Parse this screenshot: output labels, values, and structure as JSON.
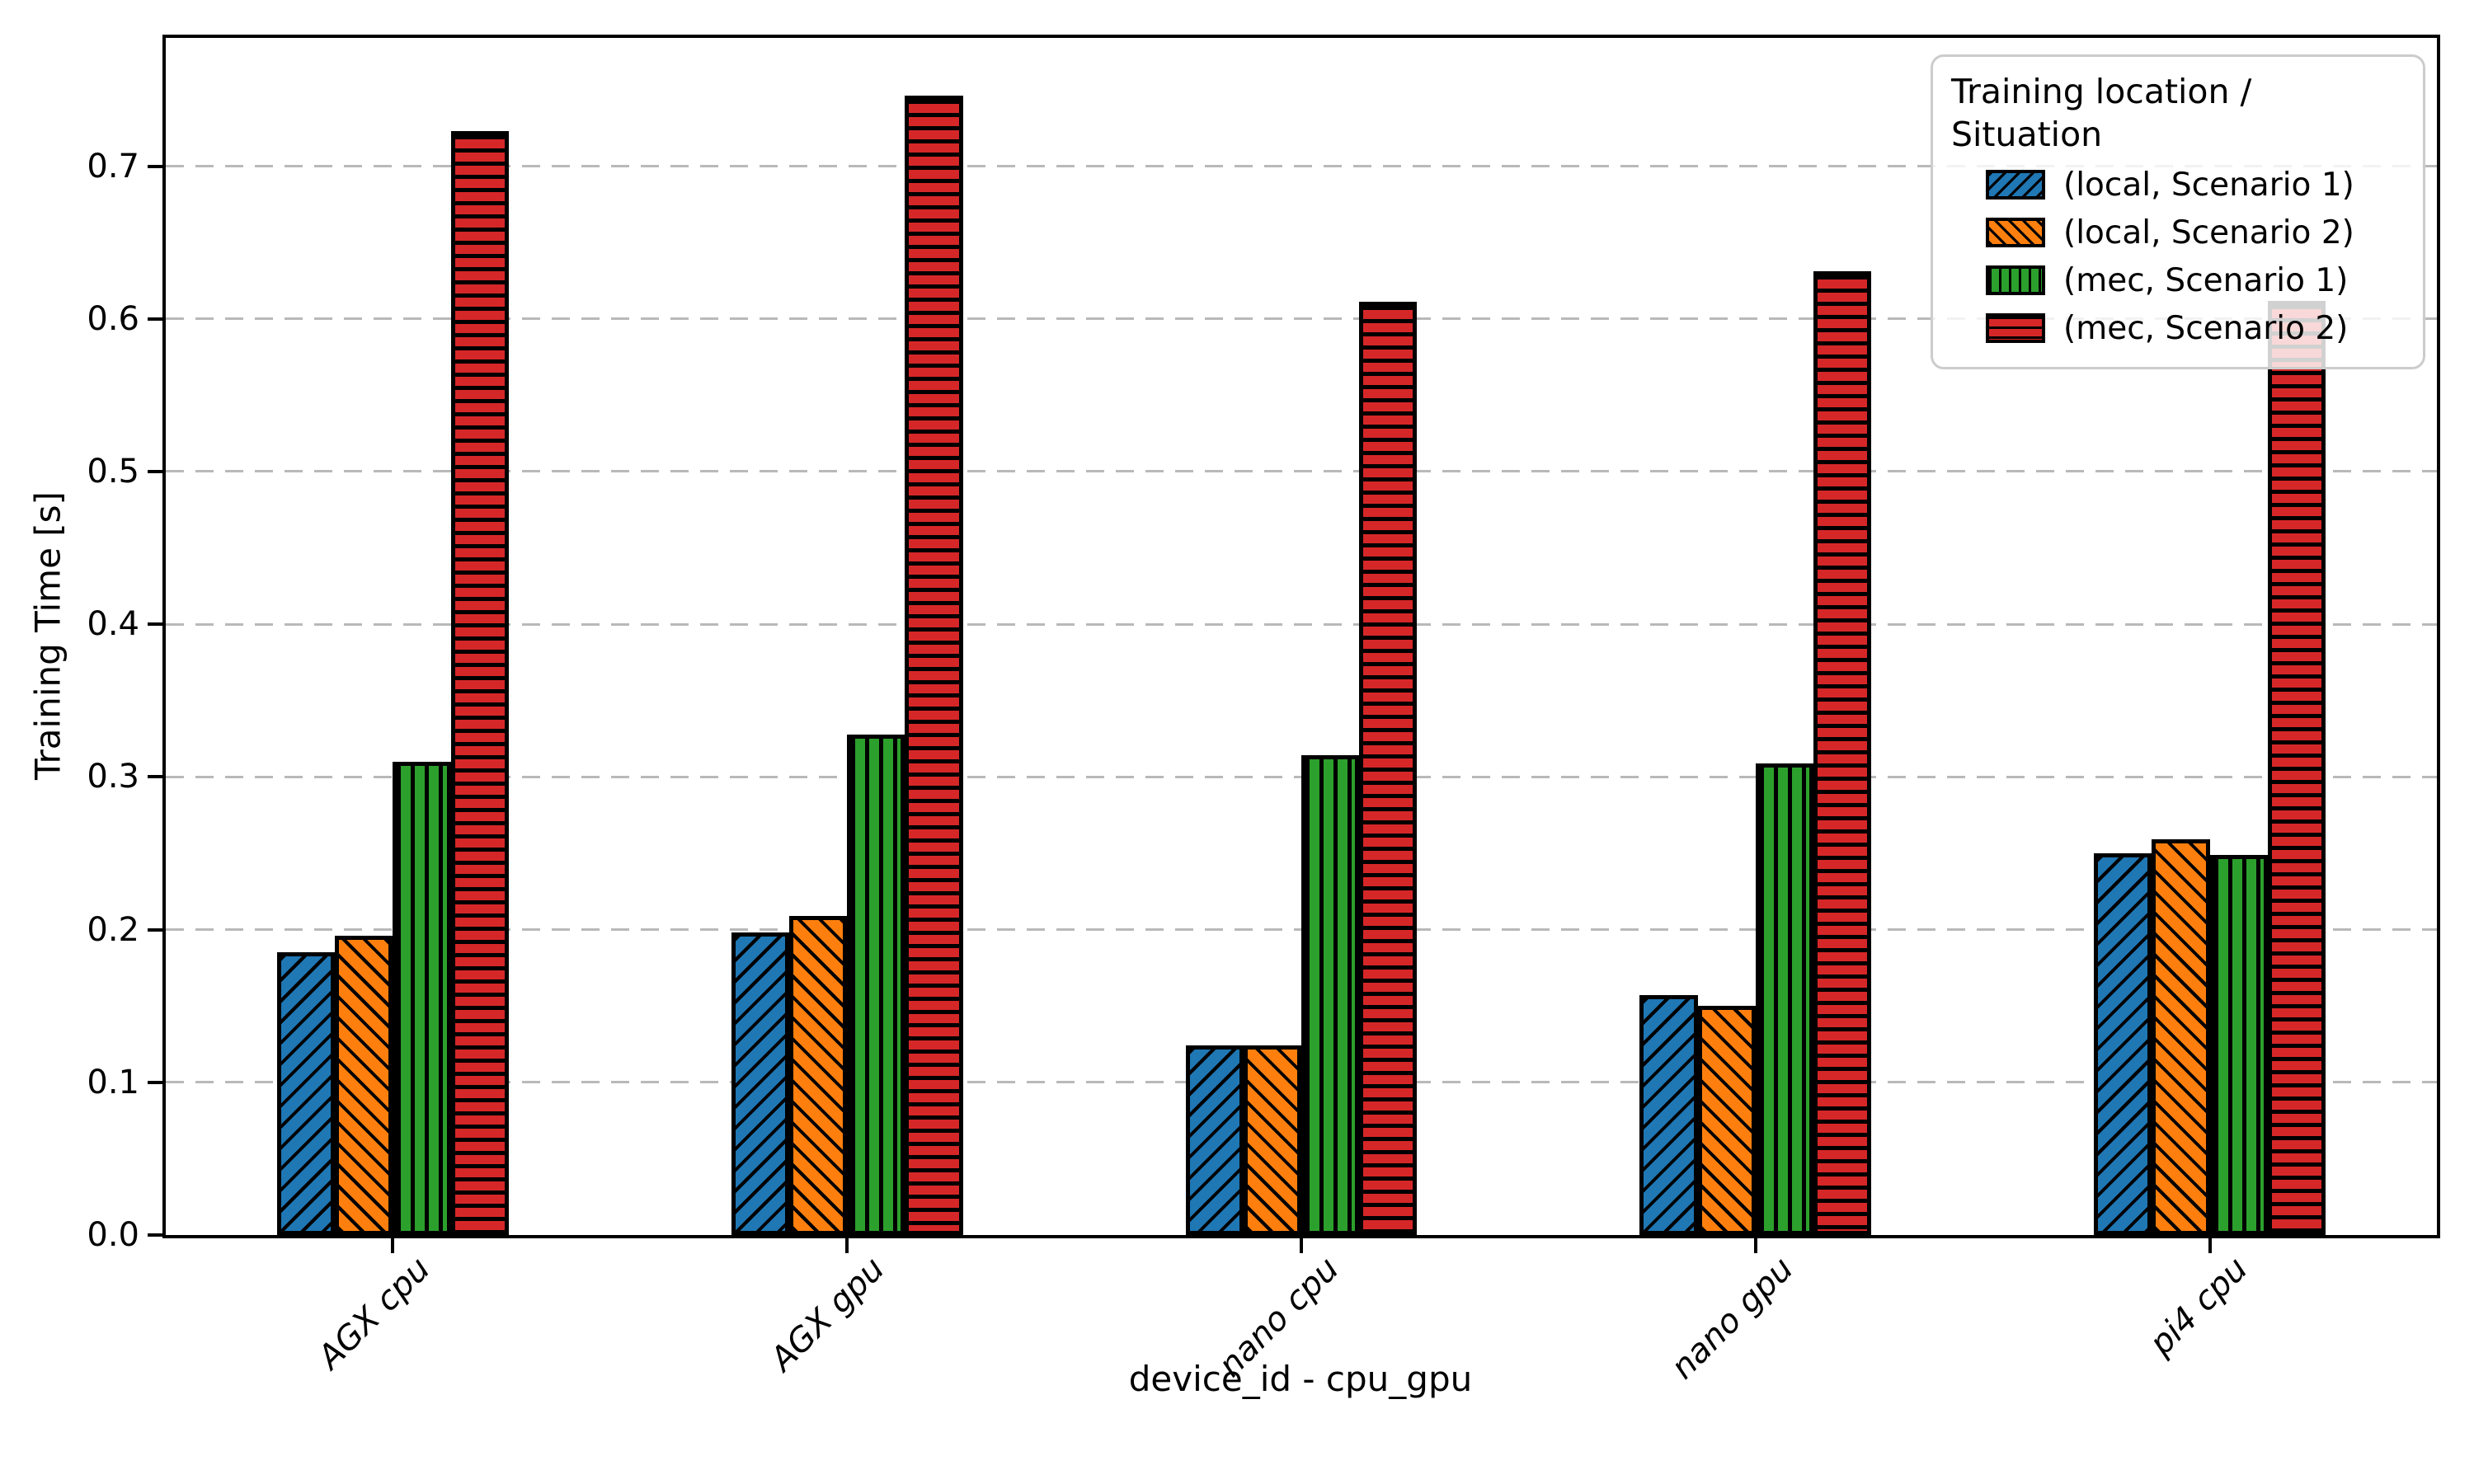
{
  "chart_data": {
    "type": "bar",
    "title": "",
    "xlabel": "device_id - cpu_gpu",
    "ylabel": "Training Time [s]",
    "categories": [
      "AGX cpu",
      "AGX gpu",
      "nano cpu",
      "nano gpu",
      "pi4 cpu"
    ],
    "series": [
      {
        "name": "(local, Scenario 1)",
        "color": "#1f77b4",
        "hatch": "/",
        "values": [
          0.185,
          0.198,
          0.124,
          0.157,
          0.25
        ]
      },
      {
        "name": "(local, Scenario 2)",
        "color": "#ff7f0e",
        "hatch": "\\",
        "values": [
          0.196,
          0.209,
          0.124,
          0.15,
          0.259
        ]
      },
      {
        "name": "(mec, Scenario 1)",
        "color": "#2ca02c",
        "hatch": "|",
        "values": [
          0.31,
          0.328,
          0.314,
          0.309,
          0.249
        ]
      },
      {
        "name": "(mec, Scenario 2)",
        "color": "#d62728",
        "hatch": "-",
        "values": [
          0.723,
          0.746,
          0.611,
          0.631,
          0.612
        ]
      }
    ],
    "legend_title": "Training location / Situation",
    "legend_position": "upper right",
    "ylim": [
      0,
      0.784
    ],
    "yticks": [
      0.0,
      0.1,
      0.2,
      0.3,
      0.4,
      0.5,
      0.6,
      0.7
    ],
    "ytick_labels": [
      "0.0",
      "0.1",
      "0.2",
      "0.3",
      "0.4",
      "0.5",
      "0.6",
      "0.7"
    ],
    "grid": "horizontal-dashed",
    "grid_color": "#b9b9b9",
    "bar_edge_color": "#000000",
    "background_color": "#ffffff"
  }
}
